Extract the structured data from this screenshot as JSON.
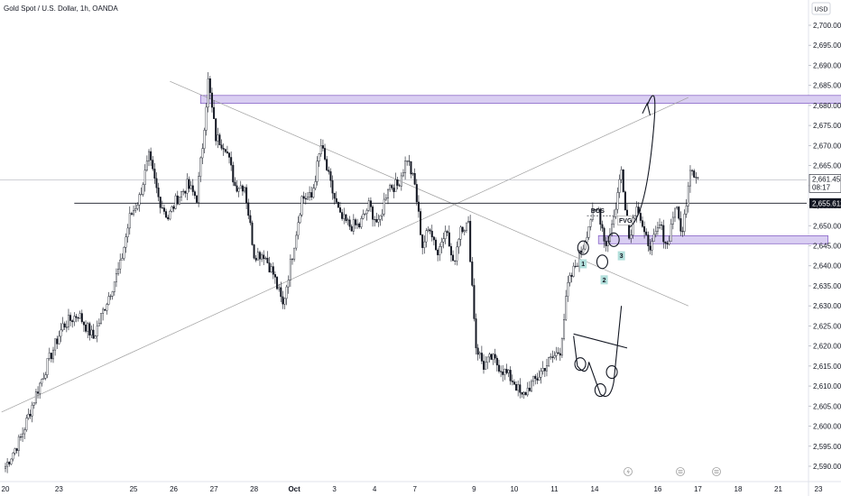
{
  "header": {
    "title": "Gold Spot / U.S. Dollar, 1h, OANDA"
  },
  "axis": {
    "currency": "USD"
  },
  "colors": {
    "up": "#26a69a",
    "down": "#131722",
    "zone_fill": "#d9cef2",
    "zone_stroke": "#7e57c2",
    "line": "#9e9e9e",
    "level": "#131722",
    "price_tag": "#131722"
  },
  "chart_data": {
    "type": "candlestick",
    "title": "Gold Spot / U.S. Dollar, 1h, OANDA",
    "y_ticks": [
      "2,700.000",
      "2,695.000",
      "2,690.000",
      "2,685.000",
      "2,680.000",
      "2,675.000",
      "2,670.000",
      "2,665.000",
      "2,660.000",
      "2,655.000",
      "2,650.000",
      "2,645.000",
      "2,640.000",
      "2,635.000",
      "2,630.000",
      "2,625.000",
      "2,620.000",
      "2,615.000",
      "2,610.000",
      "2,605.000",
      "2,600.000",
      "2,595.000",
      "2,590.000"
    ],
    "y_tick_values": [
      2700,
      2695,
      2690,
      2685,
      2680,
      2675,
      2670,
      2665,
      2660,
      2655,
      2650,
      2645,
      2640,
      2635,
      2630,
      2625,
      2620,
      2615,
      2610,
      2605,
      2600,
      2595,
      2590
    ],
    "ylim": [
      2587.0,
      2711.5
    ],
    "x_ticks": [
      "20",
      "23",
      "25",
      "26",
      "27",
      "28",
      "Oct",
      "3",
      "4",
      "7",
      "9",
      "10",
      "11",
      "14",
      "16",
      "17",
      "18",
      "21",
      "23"
    ],
    "x_tick_index": [
      0,
      28,
      67,
      88,
      109,
      130,
      151,
      172,
      193,
      214,
      245,
      266,
      287,
      308,
      341,
      362,
      383,
      404,
      425
    ],
    "bar_count": 430,
    "waypoints": [
      [
        0,
        2590
      ],
      [
        8,
        2597
      ],
      [
        16,
        2608
      ],
      [
        24,
        2618
      ],
      [
        30,
        2625
      ],
      [
        38,
        2628
      ],
      [
        46,
        2622
      ],
      [
        52,
        2630
      ],
      [
        60,
        2640
      ],
      [
        65,
        2652
      ],
      [
        70,
        2657
      ],
      [
        75,
        2667
      ],
      [
        80,
        2657
      ],
      [
        85,
        2652
      ],
      [
        90,
        2657
      ],
      [
        95,
        2660
      ],
      [
        100,
        2657
      ],
      [
        103,
        2670
      ],
      [
        106,
        2686
      ],
      [
        110,
        2672
      ],
      [
        115,
        2670
      ],
      [
        120,
        2660
      ],
      [
        125,
        2660
      ],
      [
        130,
        2643
      ],
      [
        135,
        2643
      ],
      [
        140,
        2638
      ],
      [
        145,
        2630
      ],
      [
        150,
        2643
      ],
      [
        155,
        2657
      ],
      [
        160,
        2657
      ],
      [
        165,
        2670
      ],
      [
        170,
        2660
      ],
      [
        175,
        2652
      ],
      [
        180,
        2650
      ],
      [
        185,
        2650
      ],
      [
        190,
        2655
      ],
      [
        195,
        2650
      ],
      [
        200,
        2660
      ],
      [
        205,
        2660
      ],
      [
        210,
        2667
      ],
      [
        214,
        2660
      ],
      [
        218,
        2645
      ],
      [
        222,
        2650
      ],
      [
        226,
        2643
      ],
      [
        230,
        2650
      ],
      [
        234,
        2640
      ],
      [
        238,
        2650
      ],
      [
        242,
        2650
      ],
      [
        246,
        2620
      ],
      [
        250,
        2615
      ],
      [
        254,
        2617
      ],
      [
        258,
        2615
      ],
      [
        262,
        2613
      ],
      [
        266,
        2611
      ],
      [
        270,
        2607
      ],
      [
        274,
        2610
      ],
      [
        278,
        2612
      ],
      [
        282,
        2615
      ],
      [
        286,
        2617
      ],
      [
        290,
        2619
      ],
      [
        294,
        2635
      ],
      [
        298,
        2640
      ],
      [
        302,
        2645
      ],
      [
        306,
        2652
      ],
      [
        310,
        2654
      ],
      [
        314,
        2645
      ],
      [
        318,
        2652
      ],
      [
        322,
        2664
      ],
      [
        326,
        2647
      ],
      [
        330,
        2656
      ],
      [
        334,
        2647
      ],
      [
        338,
        2645
      ],
      [
        342,
        2650
      ],
      [
        346,
        2645
      ],
      [
        350,
        2655
      ],
      [
        354,
        2648
      ],
      [
        358,
        2665
      ],
      [
        362,
        2662
      ]
    ],
    "series": [
      {
        "values": []
      }
    ],
    "current_price": {
      "label": "2,661.455",
      "sub": "08:17",
      "value": 2661.455
    },
    "level_price": {
      "label": "2,655.612",
      "value": 2655.612
    },
    "zones": [
      {
        "from": 102,
        "to": 570,
        "y1": 2682.5,
        "y2": 2680.5
      },
      {
        "from": 310,
        "to": 430,
        "y1": 2647.5,
        "y2": 2645.5
      }
    ],
    "annotations": {
      "bos": "BOS",
      "fvg": "FVG",
      "n1": "1",
      "n2": "2",
      "n3": "3"
    },
    "grid": false
  }
}
